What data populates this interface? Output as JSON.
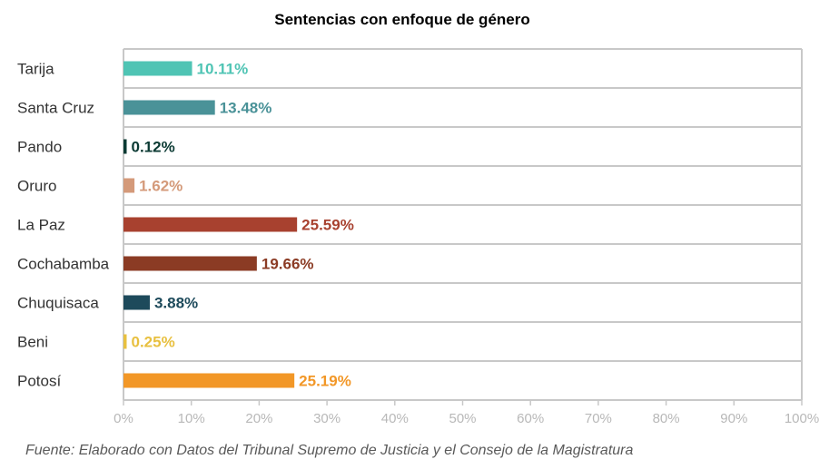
{
  "chart_data": {
    "type": "bar",
    "orientation": "horizontal",
    "title": "Sentencias con enfoque de género",
    "categories": [
      "Tarija",
      "Santa Cruz",
      "Pando",
      "Oruro",
      "La Paz",
      "Cochabamba",
      "Chuquisaca",
      "Beni",
      "Potosí"
    ],
    "values": [
      10.11,
      13.48,
      0.12,
      1.62,
      25.59,
      19.66,
      3.88,
      0.25,
      25.19
    ],
    "value_labels": [
      "10.11%",
      "13.48%",
      "0.12%",
      "1.62%",
      "25.59%",
      "19.66%",
      "3.88%",
      "0.25%",
      "25.19%"
    ],
    "colors": [
      "#4fc4b4",
      "#4a9298",
      "#0b3a33",
      "#d49a7a",
      "#a8412f",
      "#8b3b24",
      "#1d4a5b",
      "#e8c040",
      "#f29727"
    ],
    "xlim": [
      0,
      100
    ],
    "x_ticks": [
      "0%",
      "10%",
      "20%",
      "30%",
      "40%",
      "50%",
      "60%",
      "70%",
      "80%",
      "90%",
      "100%"
    ],
    "grid": true,
    "xlabel": "",
    "ylabel": "",
    "legend": "none",
    "source": "Fuente: Elaborado con Datos del Tribunal Supremo de Justicia y el Consejo de la Magistratura"
  }
}
